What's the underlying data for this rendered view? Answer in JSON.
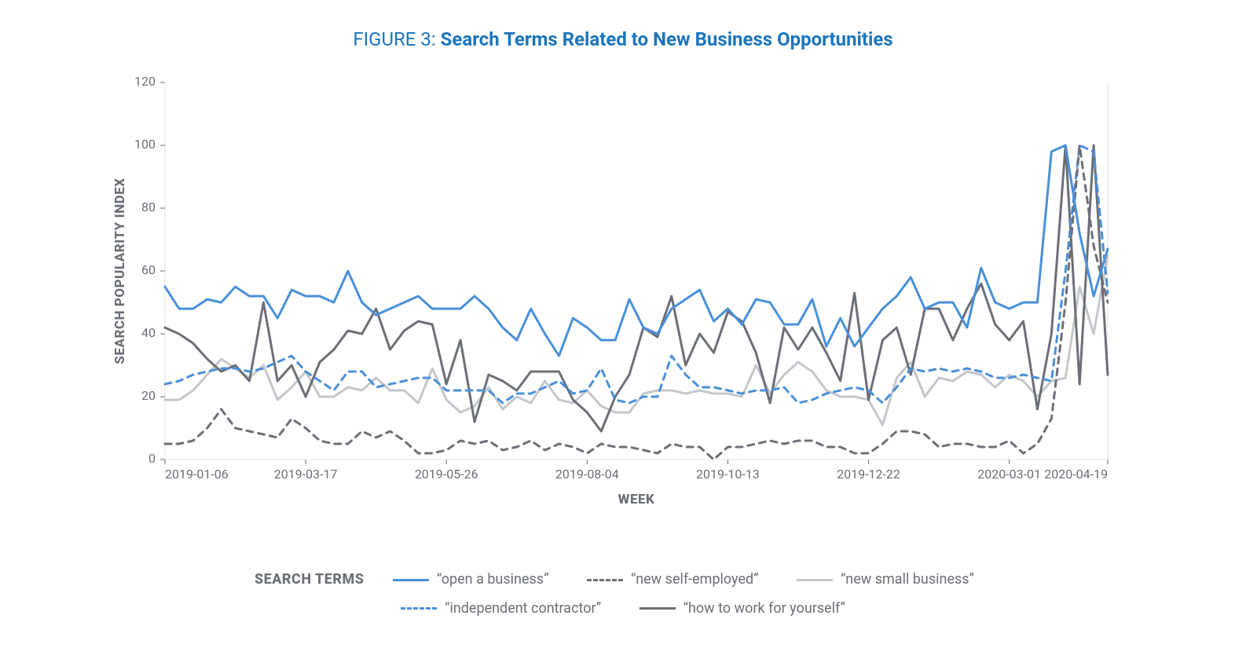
{
  "figure": {
    "prefix": "FIGURE 3:",
    "title": "Search Terms Related to New Business Opportunities"
  },
  "chart": {
    "type": "line",
    "background_color": "#ffffff",
    "plot_border_color": "#e3e3e3",
    "plot_border_width": 1,
    "grid_color": "none",
    "axis_text_color": "#6b6f76",
    "axis_title_color": "#6b6f76",
    "axis_title_fontweight": 800,
    "axis_title_fontsize": 17,
    "tick_fontsize": 16,
    "x": {
      "title": "WEEK",
      "min": 0,
      "max": 67,
      "tick_positions": [
        0,
        10,
        20,
        30,
        40,
        50,
        60,
        67
      ],
      "tick_labels": [
        "2019-01-06",
        "2019-03-17",
        "2019-05-26",
        "2019-08-04",
        "2019-10-13",
        "2019-12-22",
        "2020-03-01",
        "2020-04-19"
      ]
    },
    "y": {
      "title": "SEARCH POPULARITY INDEX",
      "min": 0,
      "max": 120,
      "tick_step": 20
    },
    "line_width": 3,
    "series": [
      {
        "name": "“open a business”",
        "color": "#4a90d9",
        "dash": "solid",
        "values": [
          55,
          48,
          48,
          51,
          50,
          55,
          52,
          52,
          45,
          54,
          52,
          52,
          50,
          60,
          50,
          46,
          48,
          50,
          52,
          48,
          48,
          48,
          52,
          48,
          42,
          38,
          48,
          40,
          33,
          45,
          42,
          38,
          38,
          51,
          42,
          40,
          48,
          51,
          54,
          44,
          48,
          43,
          51,
          50,
          43,
          43,
          51,
          36,
          45,
          36,
          42,
          48,
          52,
          58,
          48,
          50,
          50,
          42,
          61,
          50,
          48,
          50,
          50,
          98,
          100,
          72,
          52,
          67
        ]
      },
      {
        "name": "“new self-employed”",
        "color": "#6b6f76",
        "dash": "dashed",
        "values": [
          5,
          5,
          6,
          10,
          16,
          10,
          9,
          8,
          7,
          13,
          10,
          6,
          5,
          5,
          9,
          7,
          9,
          6,
          2,
          2,
          3,
          6,
          5,
          6,
          3,
          4,
          6,
          3,
          5,
          4,
          2,
          5,
          4,
          4,
          3,
          2,
          5,
          4,
          4,
          0,
          4,
          4,
          5,
          6,
          5,
          6,
          6,
          4,
          4,
          2,
          2,
          5,
          9,
          9,
          8,
          4,
          5,
          5,
          4,
          4,
          6,
          2,
          5,
          13,
          50,
          100,
          68,
          50
        ]
      },
      {
        "name": "“new small business”",
        "color": "#c4c7cc",
        "dash": "solid",
        "values": [
          19,
          19,
          22,
          27,
          32,
          29,
          26,
          30,
          19,
          23,
          28,
          20,
          20,
          23,
          22,
          26,
          22,
          22,
          18,
          29,
          19,
          15,
          17,
          23,
          16,
          20,
          18,
          25,
          19,
          18,
          22,
          17,
          15,
          15,
          21,
          22,
          22,
          21,
          22,
          21,
          21,
          20,
          30,
          21,
          27,
          31,
          28,
          22,
          20,
          20,
          19,
          11,
          26,
          31,
          20,
          26,
          25,
          28,
          27,
          23,
          27,
          25,
          20,
          25,
          26,
          55,
          40,
          65
        ]
      },
      {
        "name": "“independent contractor”",
        "color": "#4a90d9",
        "dash": "dashed",
        "values": [
          24,
          25,
          27,
          28,
          29,
          29,
          28,
          29,
          31,
          33,
          28,
          25,
          22,
          28,
          28,
          23,
          24,
          25,
          26,
          26,
          22,
          22,
          22,
          22,
          18,
          21,
          21,
          23,
          25,
          21,
          22,
          29,
          19,
          18,
          20,
          20,
          33,
          27,
          23,
          23,
          22,
          21,
          22,
          22,
          23,
          18,
          19,
          21,
          22,
          23,
          22,
          18,
          23,
          29,
          28,
          29,
          28,
          29,
          28,
          26,
          26,
          27,
          26,
          25,
          60,
          100,
          98,
          53
        ]
      },
      {
        "name": "“how to work for yourself”",
        "color": "#6b6f76",
        "dash": "solid",
        "values": [
          42,
          40,
          37,
          32,
          28,
          30,
          25,
          50,
          25,
          30,
          20,
          31,
          35,
          41,
          40,
          48,
          35,
          41,
          44,
          43,
          24,
          38,
          12,
          27,
          25,
          22,
          28,
          28,
          28,
          19,
          15,
          9,
          20,
          27,
          42,
          39,
          52,
          30,
          40,
          34,
          47,
          44,
          34,
          18,
          42,
          35,
          42,
          34,
          25,
          53,
          19,
          38,
          42,
          27,
          48,
          48,
          38,
          48,
          56,
          43,
          38,
          44,
          16,
          40,
          100,
          24,
          100,
          27
        ]
      }
    ],
    "legend": {
      "title": "SEARCH TERMS"
    }
  }
}
